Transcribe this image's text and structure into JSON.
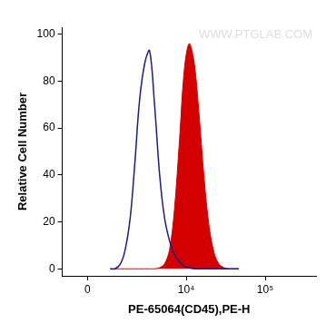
{
  "chart_data": {
    "type": "line",
    "x_label": "PE-65064(CD45),PE-H",
    "y_label": "Relative Cell Number",
    "annotations": [
      "WWW.PTGLAB.COM"
    ],
    "x": [
      800,
      1000,
      1250,
      1500,
      1800,
      2100,
      2450,
      2900,
      3350,
      3900,
      4550,
      5250,
      6100,
      7050,
      8200,
      9450,
      10900,
      12600,
      14600,
      16900,
      19500,
      22500,
      26000,
      30000,
      34700,
      40100,
      46300
    ],
    "series": [
      {
        "type": "line",
        "color": "#1c1c8f",
        "values": [
          0,
          0,
          2,
          8,
          22,
          45,
          72,
          88,
          93,
          70,
          40,
          22,
          12,
          6,
          3,
          1,
          0.5,
          0,
          0,
          0,
          0,
          0,
          0,
          0,
          0,
          0,
          0
        ]
      },
      {
        "type": "area",
        "color": "#d40000",
        "values": [
          0,
          0,
          0,
          0,
          0,
          0,
          0,
          0,
          0,
          0,
          0.5,
          2,
          8,
          25,
          55,
          85,
          96,
          88,
          65,
          38,
          18,
          7,
          2,
          0.5,
          0,
          0,
          0
        ]
      }
    ],
    "xlim": [
      -900,
      440000
    ],
    "xticks": [
      0,
      {
        "value": 10000,
        "label": "10⁴"
      },
      {
        "value": 100000,
        "label": "10⁵"
      }
    ],
    "ylim": [
      -3,
      103
    ],
    "yticks": [
      0,
      20,
      40,
      60,
      80,
      100
    ],
    "grid": false
  }
}
